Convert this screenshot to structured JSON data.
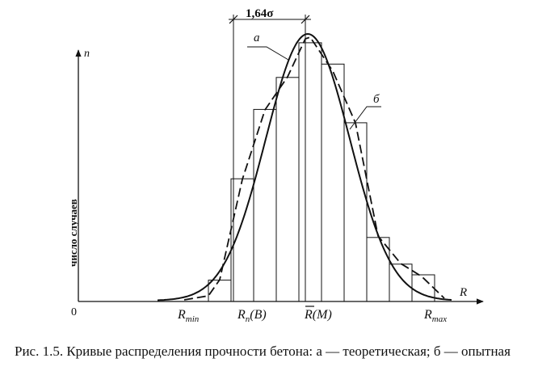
{
  "figure": {
    "y_axis_symbol": "n",
    "x_axis_symbol": "R",
    "origin_label": "0",
    "y_axis_title": "число случаев",
    "dimension_label": "1,64σ",
    "curve_a_label": "a",
    "curve_b_label": "б",
    "x_markers": [
      {
        "base": "R",
        "sub": "min",
        "overline": false,
        "suffix": ""
      },
      {
        "base": "R",
        "sub": "n",
        "overline": false,
        "suffix": "(B)"
      },
      {
        "base": "R",
        "sub": "",
        "overline": true,
        "suffix": "(M)"
      },
      {
        "base": "R",
        "sub": "max",
        "overline": false,
        "suffix": ""
      }
    ]
  },
  "histogram": {
    "description_free": true,
    "bar_heights": [
      0.08,
      0.46,
      0.72,
      0.84,
      0.97,
      0.89,
      0.67,
      0.24,
      0.14,
      0.1
    ]
  },
  "caption": {
    "text": "Рис. 1.5. Кривые распределения прочности бетона: а — теоретическая; б — опытная"
  }
}
